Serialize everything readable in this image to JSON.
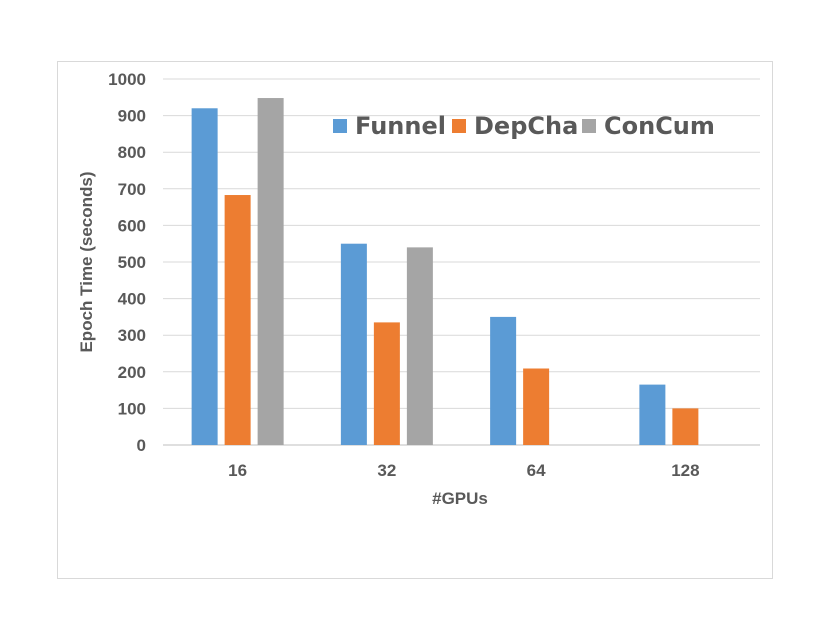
{
  "chart_data": {
    "type": "bar",
    "categories": [
      "16",
      "32",
      "64",
      "128"
    ],
    "series": [
      {
        "name": "Funnel",
        "color": "#5b9bd5",
        "values": [
          920,
          550,
          350,
          165
        ]
      },
      {
        "name": "DepCha",
        "color": "#ed7d31",
        "values": [
          683,
          335,
          209,
          100
        ]
      },
      {
        "name": "ConCum",
        "color": "#a5a5a5",
        "values": [
          948,
          540,
          null,
          null
        ]
      }
    ],
    "title": "",
    "xlabel": "#GPUs",
    "ylabel": "Epoch Time (seconds)",
    "ylim": [
      0,
      1000
    ],
    "yticks": [
      "0",
      "100",
      "200",
      "300",
      "400",
      "500",
      "600",
      "700",
      "800",
      "900",
      "1000"
    ],
    "grid": true,
    "legend_position": "top-right"
  }
}
